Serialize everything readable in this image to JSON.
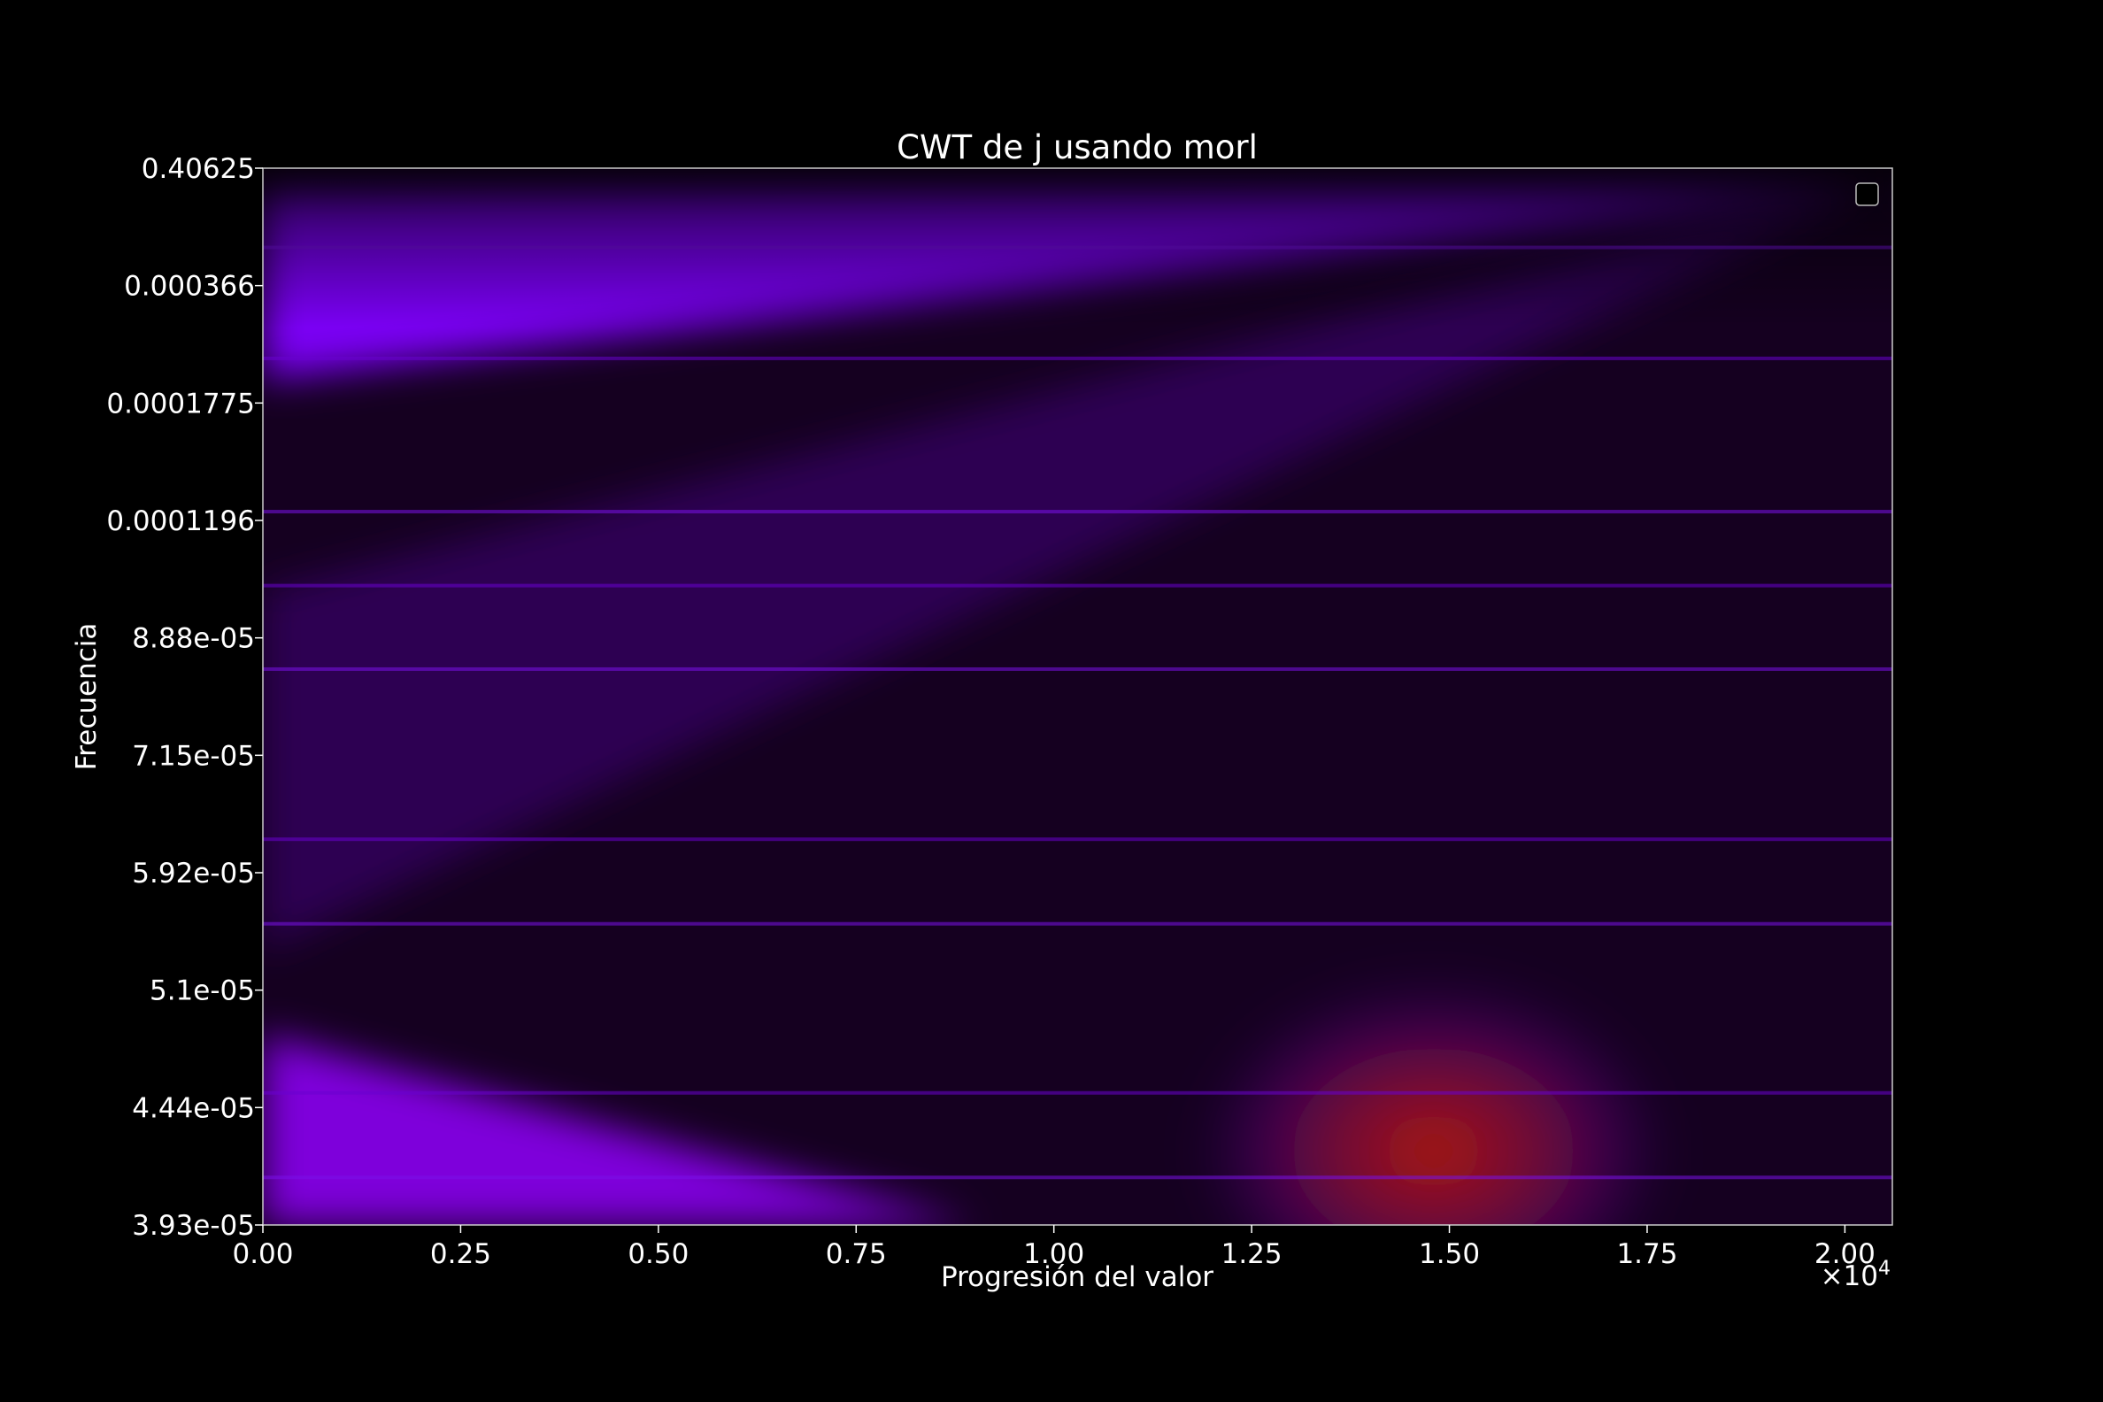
{
  "chart_data": {
    "type": "heatmap",
    "title": "CWT de j usando morl",
    "xlabel": "Progresión del valor",
    "ylabel": "Frecuencia",
    "x_scale_label": "×10",
    "x_scale_exponent": "4",
    "x_multiplier": 10000,
    "xlim": [
      0.0,
      2.06
    ],
    "x_ticks": [
      0.0,
      0.25,
      0.5,
      0.75,
      1.0,
      1.25,
      1.5,
      1.75,
      2.0
    ],
    "x_tick_labels": [
      "0.00",
      "0.25",
      "0.50",
      "0.75",
      "1.00",
      "1.25",
      "1.50",
      "1.75",
      "2.00"
    ],
    "y_tick_labels": [
      "0.40625",
      "0.000366",
      "0.0001775",
      "0.0001196",
      "8.88e-05",
      "7.15e-05",
      "5.92e-05",
      "5.1e-05",
      "4.44e-05",
      "3.93e-05"
    ],
    "y_axis_order": "top-to-bottom",
    "colormap": [
      "#000000",
      "#2a0040",
      "#8000ff",
      "#9a10d0",
      "#b81800"
    ],
    "legend": {
      "placement": "upper right",
      "entries": []
    },
    "grid": false,
    "background_color": "#000000",
    "text_color": "#ffffff",
    "features": {
      "bands": [
        {
          "name": "band-1",
          "x_start": 0.0,
          "y_low_start": 0.4,
          "y_high_start": 0.74,
          "x_end": 2.04,
          "intensity": 0.45
        },
        {
          "name": "band-2",
          "x_start": 0.0,
          "y_low_start": 0.02,
          "y_high_start": 0.2,
          "x_end": 2.04,
          "intensity": 0.95
        },
        {
          "name": "band-3",
          "x_start": 0.9,
          "y_low_start": -0.32,
          "y_high_start": -0.02,
          "x_end": 2.04,
          "intensity": 1.0
        }
      ],
      "hot_region": {
        "x_center": 1.48,
        "y_frac": 0.93,
        "color": "#b81800"
      }
    }
  }
}
